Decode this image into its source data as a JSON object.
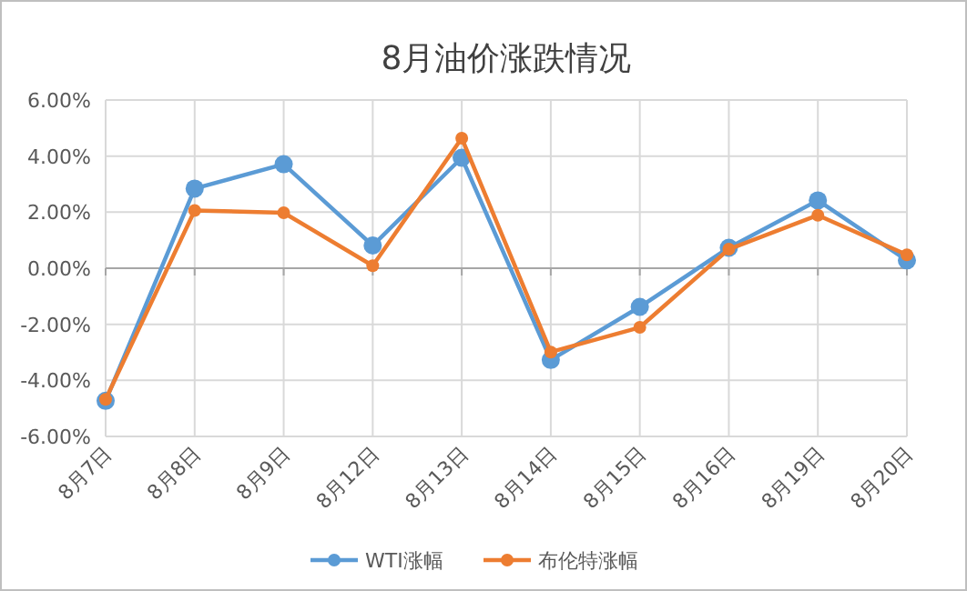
{
  "chart_data": {
    "type": "line",
    "title": "8月油价涨跌情况",
    "categories": [
      "8月7日",
      "8月8日",
      "8月9日",
      "8月12日",
      "8月13日",
      "8月14日",
      "8月15日",
      "8月16日",
      "8月19日",
      "8月20日"
    ],
    "series": [
      {
        "name": "WTI涨幅",
        "color": "#5b9bd5",
        "values": [
          -4.73,
          2.84,
          3.71,
          0.81,
          3.94,
          -3.27,
          -1.38,
          0.73,
          2.42,
          0.28
        ]
      },
      {
        "name": "布伦特涨幅",
        "color": "#ed7d31",
        "values": [
          -4.68,
          2.06,
          1.98,
          0.09,
          4.64,
          -2.99,
          -2.11,
          0.68,
          1.89,
          0.48
        ]
      }
    ],
    "ylim": [
      -6,
      6
    ],
    "yticks": [
      {
        "value": -6,
        "label": "-6.00%"
      },
      {
        "value": -4,
        "label": "-4.00%"
      },
      {
        "value": -2,
        "label": "-2.00%"
      },
      {
        "value": 0,
        "label": "0.00%"
      },
      {
        "value": 2,
        "label": "2.00%"
      },
      {
        "value": 4,
        "label": "4.00%"
      },
      {
        "value": 6,
        "label": "6.00%"
      }
    ],
    "grid": true,
    "legend": "bottom",
    "marker": "circle",
    "line_style": "solid"
  }
}
